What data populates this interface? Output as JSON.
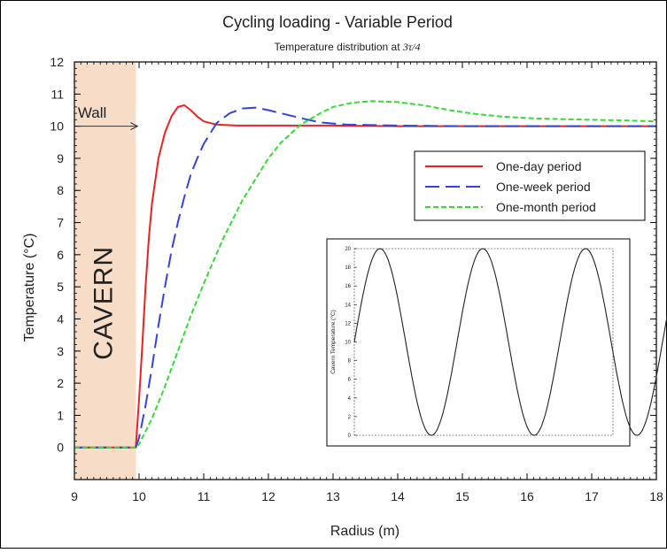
{
  "chart_data": {
    "type": "line",
    "title": "Cycling loading - Variable Period",
    "subtitle_prefix": "Temperature distribution at ",
    "subtitle_math": "3τ/4",
    "xlabel": "Radius (m)",
    "ylabel": "Temperature (°C)",
    "xlim": [
      9,
      18
    ],
    "ylim": [
      -1,
      12
    ],
    "x_ticks": [
      "9",
      "10",
      "11",
      "12",
      "13",
      "14",
      "15",
      "16",
      "17",
      "18"
    ],
    "y_ticks": [
      "0",
      "1",
      "2",
      "3",
      "4",
      "5",
      "6",
      "7",
      "8",
      "9",
      "10",
      "11",
      "12"
    ],
    "grid": false,
    "legend_position": "upper-right",
    "shaded_region": {
      "label": "CAVERN",
      "x_range": [
        9,
        9.95
      ],
      "color": "#f7dcc8"
    },
    "annotation": {
      "text": "Wall",
      "x": 9.3,
      "y": 10.1
    },
    "series": [
      {
        "name": "One-day period",
        "color": "#ee2020",
        "dash": "solid",
        "x": [
          9.0,
          9.95,
          10.0,
          10.05,
          10.1,
          10.15,
          10.2,
          10.3,
          10.4,
          10.5,
          10.6,
          10.7,
          10.8,
          10.9,
          11.0,
          11.2,
          11.5,
          12.0,
          13.0,
          14.0,
          15.0,
          16.0,
          17.0,
          18.0
        ],
        "y": [
          0.0,
          0.0,
          1.5,
          3.2,
          5.0,
          6.5,
          7.6,
          9.0,
          9.8,
          10.3,
          10.6,
          10.65,
          10.5,
          10.3,
          10.15,
          10.05,
          10.02,
          10.02,
          10.02,
          10.0,
          10.0,
          10.0,
          10.0,
          10.0
        ]
      },
      {
        "name": "One-week period",
        "color": "#3344dd",
        "dash": "long",
        "x": [
          9.0,
          9.95,
          10.0,
          10.1,
          10.2,
          10.3,
          10.4,
          10.5,
          10.6,
          10.7,
          10.8,
          10.9,
          11.0,
          11.2,
          11.4,
          11.6,
          11.8,
          12.0,
          12.2,
          12.5,
          12.8,
          13.2,
          14.0,
          15.0,
          16.0,
          17.0,
          18.0
        ],
        "y": [
          0.0,
          0.0,
          0.3,
          1.3,
          2.5,
          3.8,
          5.0,
          6.1,
          7.0,
          7.8,
          8.5,
          9.0,
          9.45,
          10.1,
          10.4,
          10.55,
          10.58,
          10.5,
          10.4,
          10.25,
          10.12,
          10.05,
          10.02,
          10.0,
          10.0,
          10.0,
          10.0
        ]
      },
      {
        "name": "One-month period",
        "color": "#33dd33",
        "dash": "short",
        "x": [
          9.0,
          9.95,
          10.0,
          10.2,
          10.4,
          10.6,
          10.8,
          11.0,
          11.3,
          11.6,
          12.0,
          12.2,
          12.5,
          12.8,
          13.0,
          13.3,
          13.6,
          14.0,
          14.4,
          14.8,
          15.2,
          15.6,
          16.0,
          16.5,
          17.0,
          17.5,
          18.0
        ],
        "y": [
          0.0,
          0.0,
          0.1,
          0.9,
          1.9,
          3.0,
          4.1,
          5.1,
          6.5,
          7.7,
          9.0,
          9.5,
          10.05,
          10.4,
          10.6,
          10.73,
          10.78,
          10.75,
          10.65,
          10.5,
          10.38,
          10.3,
          10.25,
          10.22,
          10.2,
          10.18,
          10.15
        ]
      }
    ],
    "inset": {
      "type": "line",
      "ylabel": "Cavern Temperature (°C)",
      "ylim": [
        0,
        20
      ],
      "y_ticks": [
        "0",
        "2",
        "4",
        "6",
        "8",
        "10",
        "12",
        "14",
        "16",
        "18",
        "20"
      ],
      "period_count": 5.75,
      "min": 0,
      "max": 20,
      "start_value": 10,
      "marker_phase": 0.75,
      "marker_value": 0.4,
      "color": "#222222"
    }
  }
}
